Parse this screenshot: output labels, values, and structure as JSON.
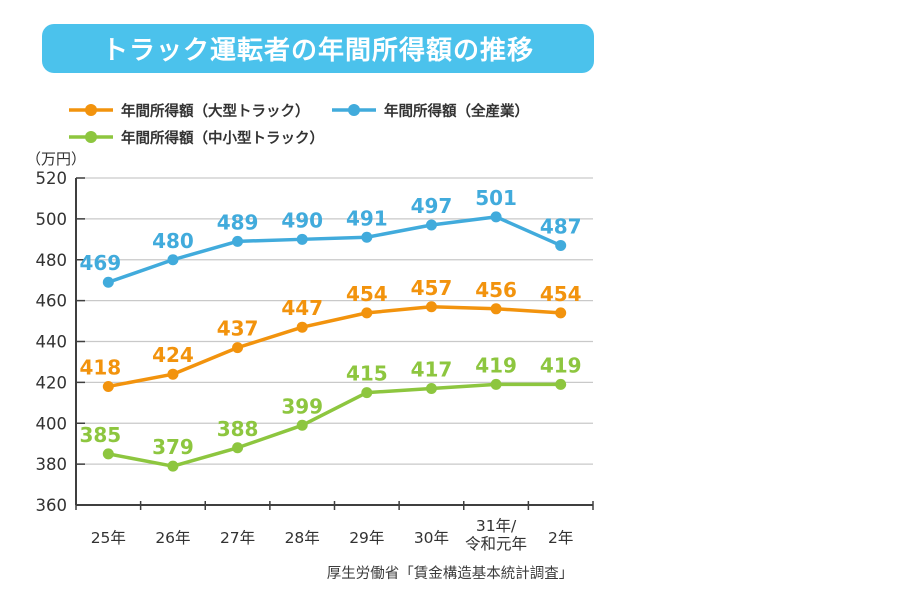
{
  "title": {
    "text": "トラック運転者の年間所得額の推移",
    "bg_color": "#4BC2EC",
    "text_color": "#ffffff"
  },
  "legend": {
    "items": [
      {
        "label": "年間所得額（大型トラック）",
        "color": "#F2930D"
      },
      {
        "label": "年間所得額（全産業）",
        "color": "#41ABDC"
      },
      {
        "label": "年間所得額（中小型トラック）",
        "color": "#8DC63F"
      }
    ]
  },
  "chart_data": {
    "type": "line",
    "title": "トラック運転者の年間所得額の推移",
    "unit_label": "（万円）",
    "xlabel": "",
    "ylabel": "万円",
    "categories": [
      "25年",
      "26年",
      "27年",
      "28年",
      "29年",
      "30年",
      "31年/令和元年",
      "2年"
    ],
    "categories_multiline": [
      [
        "25年"
      ],
      [
        "26年"
      ],
      [
        "27年"
      ],
      [
        "28年"
      ],
      [
        "29年"
      ],
      [
        "30年"
      ],
      [
        "31年/",
        "令和元年"
      ],
      [
        "2年"
      ]
    ],
    "series": [
      {
        "name": "年間所得額（大型トラック）",
        "color": "#F2930D",
        "values": [
          418,
          424,
          437,
          447,
          454,
          457,
          456,
          454
        ]
      },
      {
        "name": "年間所得額（全産業）",
        "color": "#41ABDC",
        "values": [
          469,
          480,
          489,
          490,
          491,
          497,
          501,
          487
        ]
      },
      {
        "name": "年間所得額（中小型トラック）",
        "color": "#8DC63F",
        "values": [
          385,
          379,
          388,
          399,
          415,
          417,
          419,
          419
        ]
      }
    ],
    "ylim": [
      360,
      520
    ],
    "yticks": [
      360,
      380,
      400,
      420,
      440,
      460,
      480,
      500,
      520
    ],
    "grid": true,
    "legend_position": "top",
    "grid_color": "#c9c9c9",
    "axis_color": "#3f3f3f",
    "tick_label_color": "#323232",
    "data_labels": true
  },
  "source": {
    "text": "厚生労働省「賃金構造基本統計調査」"
  }
}
